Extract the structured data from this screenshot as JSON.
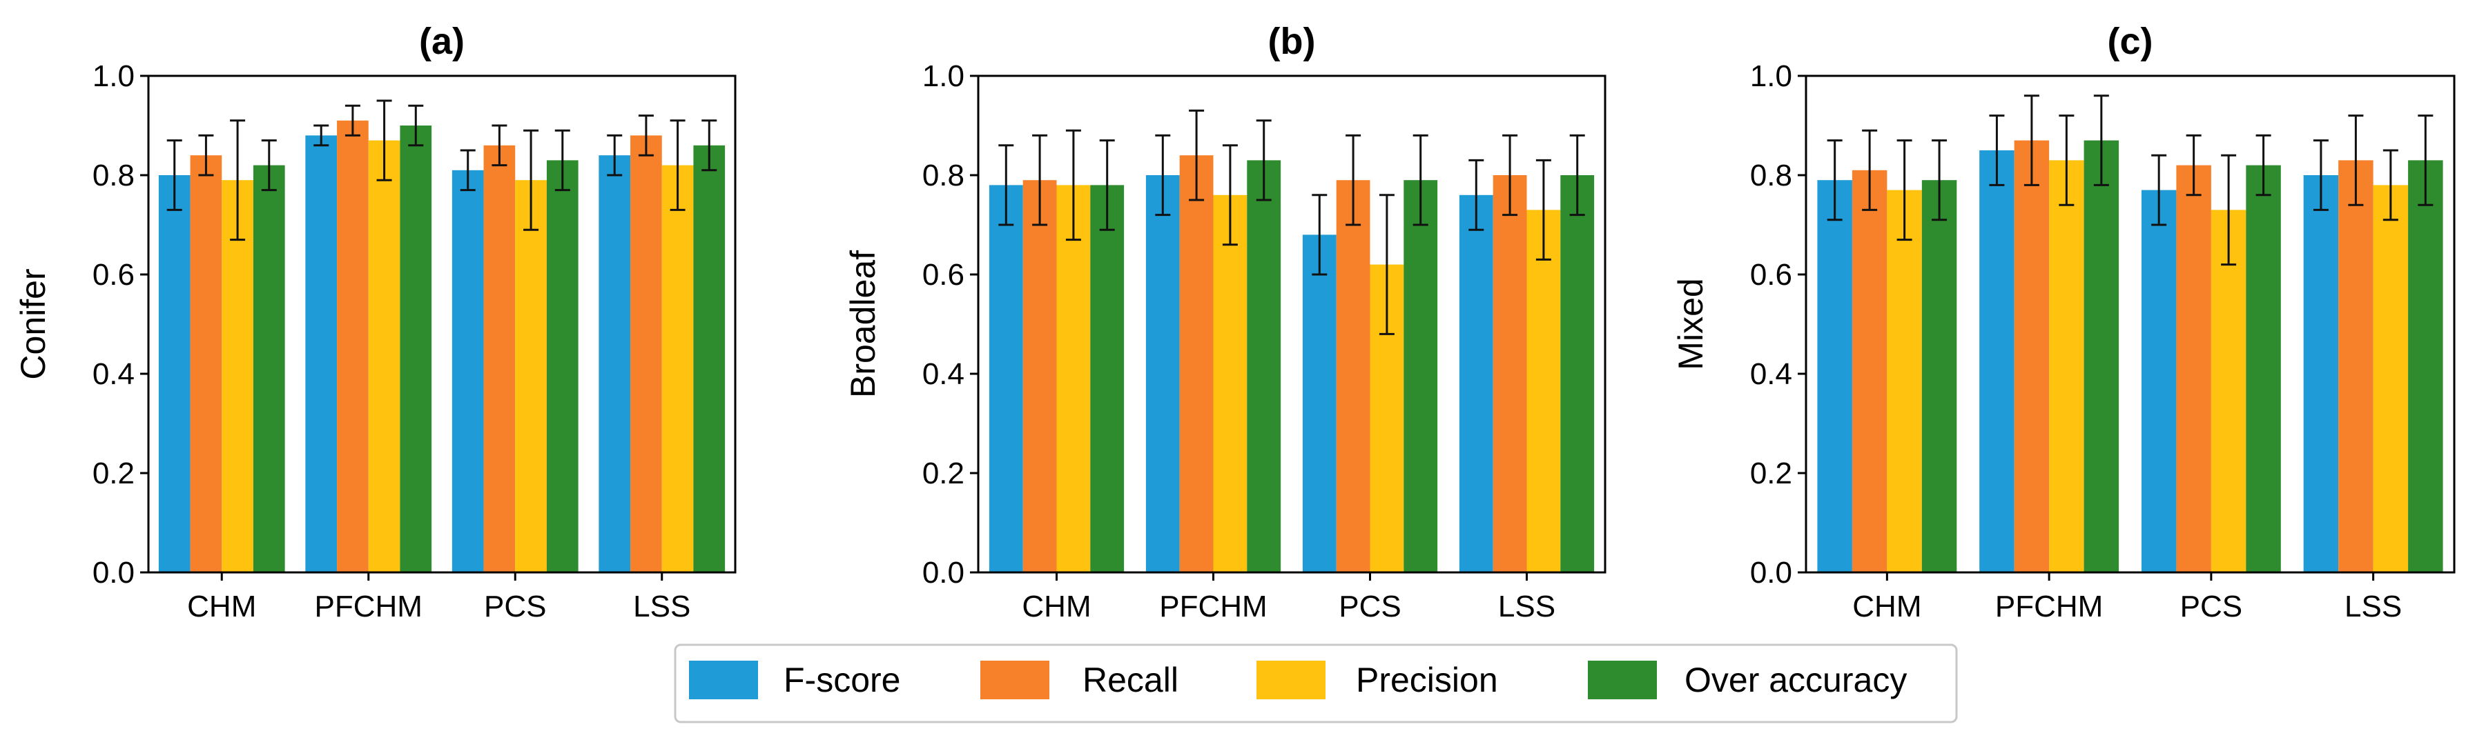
{
  "chart_data": [
    {
      "type": "bar",
      "title": "(a)",
      "xlabel": "",
      "ylabel": "Conifer",
      "ylim": [
        0.0,
        1.0
      ],
      "yticks": [
        "0.0",
        "0.2",
        "0.4",
        "0.6",
        "0.8",
        "1.0"
      ],
      "categories": [
        "CHM",
        "PFCHM",
        "PCS",
        "LSS"
      ],
      "series": [
        {
          "name": "F-score",
          "values": [
            0.8,
            0.88,
            0.81,
            0.84
          ],
          "err": [
            0.07,
            0.02,
            0.04,
            0.04
          ]
        },
        {
          "name": "Recall",
          "values": [
            0.84,
            0.91,
            0.86,
            0.88
          ],
          "err": [
            0.04,
            0.03,
            0.04,
            0.04
          ]
        },
        {
          "name": "Precision",
          "values": [
            0.79,
            0.87,
            0.79,
            0.82
          ],
          "err": [
            0.12,
            0.08,
            0.1,
            0.09
          ]
        },
        {
          "name": "Over accuracy",
          "values": [
            0.82,
            0.9,
            0.83,
            0.86
          ],
          "err": [
            0.05,
            0.04,
            0.06,
            0.05
          ]
        }
      ]
    },
    {
      "type": "bar",
      "title": "(b)",
      "xlabel": "",
      "ylabel": "Broadleaf",
      "ylim": [
        0.0,
        1.0
      ],
      "yticks": [
        "0.0",
        "0.2",
        "0.4",
        "0.6",
        "0.8",
        "1.0"
      ],
      "categories": [
        "CHM",
        "PFCHM",
        "PCS",
        "LSS"
      ],
      "series": [
        {
          "name": "F-score",
          "values": [
            0.78,
            0.8,
            0.68,
            0.76
          ],
          "err": [
            0.08,
            0.08,
            0.08,
            0.07
          ]
        },
        {
          "name": "Recall",
          "values": [
            0.79,
            0.84,
            0.79,
            0.8
          ],
          "err": [
            0.09,
            0.09,
            0.09,
            0.08
          ]
        },
        {
          "name": "Precision",
          "values": [
            0.78,
            0.76,
            0.62,
            0.73
          ],
          "err": [
            0.11,
            0.1,
            0.14,
            0.1
          ]
        },
        {
          "name": "Over accuracy",
          "values": [
            0.78,
            0.83,
            0.79,
            0.8
          ],
          "err": [
            0.09,
            0.08,
            0.09,
            0.08
          ]
        }
      ]
    },
    {
      "type": "bar",
      "title": "(c)",
      "xlabel": "",
      "ylabel": "Mixed",
      "ylim": [
        0.0,
        1.0
      ],
      "yticks": [
        "0.0",
        "0.2",
        "0.4",
        "0.6",
        "0.8",
        "1.0"
      ],
      "categories": [
        "CHM",
        "PFCHM",
        "PCS",
        "LSS"
      ],
      "series": [
        {
          "name": "F-score",
          "values": [
            0.79,
            0.85,
            0.77,
            0.8
          ],
          "err": [
            0.08,
            0.07,
            0.07,
            0.07
          ]
        },
        {
          "name": "Recall",
          "values": [
            0.81,
            0.87,
            0.82,
            0.83
          ],
          "err": [
            0.08,
            0.09,
            0.06,
            0.09
          ]
        },
        {
          "name": "Precision",
          "values": [
            0.77,
            0.83,
            0.73,
            0.78
          ],
          "err": [
            0.1,
            0.09,
            0.11,
            0.07
          ]
        },
        {
          "name": "Over accuracy",
          "values": [
            0.79,
            0.87,
            0.82,
            0.83
          ],
          "err": [
            0.08,
            0.09,
            0.06,
            0.09
          ]
        }
      ]
    }
  ],
  "legend": {
    "placement": "bottom-center",
    "items": [
      {
        "label": "F-score",
        "color": "#1f9bd7"
      },
      {
        "label": "Recall",
        "color": "#f7812b"
      },
      {
        "label": "Precision",
        "color": "#ffc20e"
      },
      {
        "label": "Over accuracy",
        "color": "#2e8b2e"
      }
    ]
  }
}
